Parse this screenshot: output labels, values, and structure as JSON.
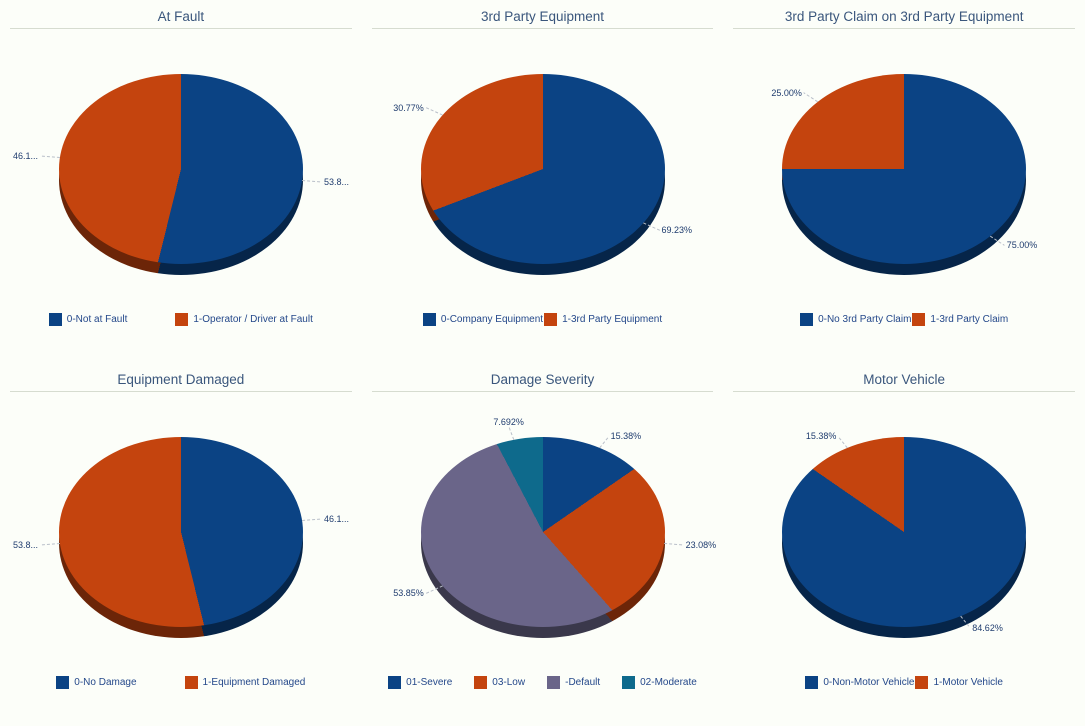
{
  "page": {
    "background": "#FCFEF9",
    "title_color": "#3A567C",
    "label_color": "#1F3C6E",
    "legend_text_color": "#24488A",
    "divider_color": "#D6DCD0",
    "leader_line_color": "#B9BFC9"
  },
  "palette": {
    "blue": "#0B4384",
    "orange": "#C4440E",
    "purple": "#6A6589",
    "teal": "#0E6A8C"
  },
  "chart_data": [
    {
      "type": "pie",
      "title": "At Fault",
      "legend_position": "bottom",
      "slices": [
        {
          "label": "0-Not at Fault",
          "value": 53.85,
          "display": "53.8...",
          "color": "#0B4384"
        },
        {
          "label": "1-Operator / Driver at Fault",
          "value": 46.15,
          "display": "46.1...",
          "color": "#C4440E"
        }
      ]
    },
    {
      "type": "pie",
      "title": "3rd Party Equipment",
      "legend_position": "bottom",
      "slices": [
        {
          "label": "0-Company Equipment",
          "value": 69.23,
          "display": "69.23%",
          "color": "#0B4384"
        },
        {
          "label": "1-3rd Party Equipment",
          "value": 30.77,
          "display": "30.77%",
          "color": "#C4440E"
        }
      ]
    },
    {
      "type": "pie",
      "title": "3rd Party Claim on 3rd Party Equipment",
      "legend_position": "bottom",
      "slices": [
        {
          "label": "0-No 3rd Party Claim",
          "value": 75.0,
          "display": "75.00%",
          "color": "#0B4384"
        },
        {
          "label": "1-3rd Party Claim",
          "value": 25.0,
          "display": "25.00%",
          "color": "#C4440E"
        }
      ]
    },
    {
      "type": "pie",
      "title": "Equipment Damaged",
      "legend_position": "bottom",
      "slices": [
        {
          "label": "0-No Damage",
          "value": 46.15,
          "display": "46.1...",
          "color": "#0B4384"
        },
        {
          "label": "1-Equipment Damaged",
          "value": 53.85,
          "display": "53.8...",
          "color": "#C4440E"
        }
      ]
    },
    {
      "type": "pie",
      "title": "Damage Severity",
      "legend_position": "bottom",
      "slices": [
        {
          "label": "01-Severe",
          "value": 15.38,
          "display": "15.38%",
          "color": "#0B4384"
        },
        {
          "label": "03-Low",
          "value": 23.08,
          "display": "23.08%",
          "color": "#C4440E"
        },
        {
          "label": "-Default",
          "value": 53.85,
          "display": "53.85%",
          "color": "#6A6589"
        },
        {
          "label": "02-Moderate",
          "value": 7.692,
          "display": "7.692%",
          "color": "#0E6A8C"
        }
      ]
    },
    {
      "type": "pie",
      "title": "Motor Vehicle",
      "legend_position": "bottom",
      "slices": [
        {
          "label": "0-Non-Motor Vehicle",
          "value": 84.62,
          "display": "84.62%",
          "color": "#0B4384"
        },
        {
          "label": "1-Motor Vehicle",
          "value": 15.38,
          "display": "15.38%",
          "color": "#C4440E"
        }
      ]
    }
  ]
}
